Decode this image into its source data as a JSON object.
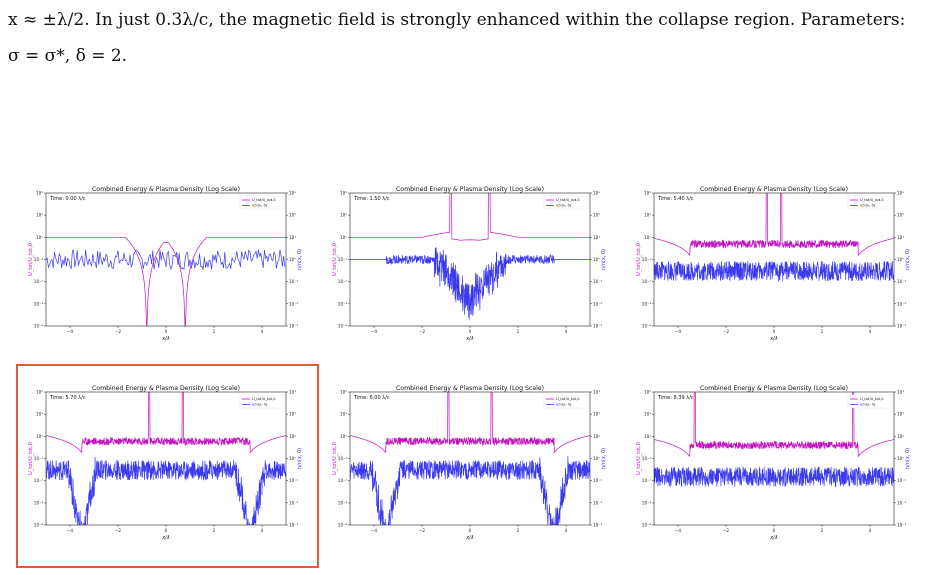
{
  "caption": {
    "line1": "x ≈ ±λ/2. In just 0.3λ/c, the magnetic field is strongly enhanced within the collapse region. Parameters:",
    "line2": "σ = σ*, δ = 2."
  },
  "colors": {
    "energy": "#c012c0",
    "density": "#3a3af0",
    "highlight": "#e8573c"
  },
  "highlighted_panel_index": 3,
  "chart_data": [
    {
      "type": "line",
      "title": "Combined Energy & Plasma Density (Log Scale)",
      "time_label": "Time: 0.00 λ/c",
      "xlabel": "x/λ",
      "ylabel_left": "U_tot/U_tot,0",
      "ylabel_right": "n/n(x, 0)",
      "xlim": [
        -5,
        5
      ],
      "ylim_left": [
        0.0001,
        100
      ],
      "ylim_right": [
        0.001,
        1000
      ],
      "log_y": true,
      "legend": {
        "entries": [
          "U_tot/U_tot,0",
          "n/n(x, 0)"
        ],
        "placement": "top-right"
      },
      "series": [
        {
          "name": "U_tot/U_tot,0",
          "shape": "dips",
          "base": 1,
          "dips_at": [
            -0.8,
            0.8
          ]
        },
        {
          "name": "n/n(x, 0)",
          "shape": "flat",
          "base": 1
        }
      ]
    },
    {
      "type": "line",
      "title": "Combined Energy & Plasma Density (Log Scale)",
      "time_label": "Time: 1.50 λ/c",
      "xlabel": "x/λ",
      "ylabel_left": "U_tot/U_tot,0",
      "ylabel_right": "n/n(x, 0)",
      "xlim": [
        -5,
        5
      ],
      "ylim_left": [
        0.0001,
        100
      ],
      "ylim_right": [
        0.001,
        1000
      ],
      "log_y": true,
      "legend": {
        "entries": [
          "U_tot/U_tot,0",
          "n/n(x, 0)"
        ],
        "placement": "top-right"
      },
      "series": [
        {
          "name": "U_tot/U_tot,0",
          "shape": "spikes",
          "base": 1,
          "spikes_at": [
            -0.8,
            0.8
          ]
        },
        {
          "name": "n/n(x, 0)",
          "shape": "noisy-dip",
          "base": 1
        }
      ]
    },
    {
      "type": "line",
      "title": "Combined Energy & Plasma Density (Log Scale)",
      "time_label": "Time: 5.40 λ/c",
      "xlabel": "x/λ",
      "ylabel_left": "U_tot/U_tot,0",
      "ylabel_right": "n/n(x, 0)",
      "xlim": [
        -5,
        5
      ],
      "ylim_left": [
        0.0001,
        100
      ],
      "ylim_right": [
        0.001,
        1000
      ],
      "log_y": true,
      "legend": {
        "entries": [
          "U_tot/U_tot,0",
          "n/n(x, 0)"
        ],
        "placement": "top-right"
      },
      "series": [
        {
          "name": "U_tot/U_tot,0",
          "shape": "noisy",
          "base": 0.5,
          "spikes_at": [
            -0.3,
            0.3
          ]
        },
        {
          "name": "n/n(x, 0)",
          "shape": "noisy",
          "base": 0.3
        }
      ]
    },
    {
      "type": "line",
      "title": "Combined Energy & Plasma Density (Log Scale)",
      "time_label": "Time: 5.70 λ/c",
      "xlabel": "x/λ",
      "ylabel_left": "U_tot/U_tot,0",
      "ylabel_right": "n/n(x, 0)",
      "xlim": [
        -5,
        5
      ],
      "ylim_left": [
        0.0001,
        100
      ],
      "ylim_right": [
        0.001,
        1000
      ],
      "log_y": true,
      "legend": {
        "entries": [
          "U_tot/U_tot,0",
          "n/n(x, 0)"
        ],
        "placement": "top-right"
      },
      "series": [
        {
          "name": "U_tot/U_tot,0",
          "shape": "noisy",
          "base": 0.6,
          "spikes_at": [
            -0.7,
            0.7
          ]
        },
        {
          "name": "n/n(x, 0)",
          "shape": "noisy-deepdips",
          "base": 0.3,
          "dips_at": [
            -3.5,
            3.5
          ]
        }
      ]
    },
    {
      "type": "line",
      "title": "Combined Energy & Plasma Density (Log Scale)",
      "time_label": "Time: 6.00 λ/c",
      "xlabel": "x/λ",
      "ylabel_left": "U_tot/U_tot,0",
      "ylabel_right": "n/n(x, 0)",
      "xlim": [
        -5,
        5
      ],
      "ylim_left": [
        0.0001,
        100
      ],
      "ylim_right": [
        0.001,
        1000
      ],
      "log_y": true,
      "legend": {
        "entries": [
          "U_tot/U_tot,0",
          "n/n(x, 0)"
        ],
        "placement": "top-right"
      },
      "series": [
        {
          "name": "U_tot/U_tot,0",
          "shape": "noisy",
          "base": 0.6,
          "spikes_at": [
            -0.9,
            0.9
          ]
        },
        {
          "name": "n/n(x, 0)",
          "shape": "noisy-deepdips",
          "base": 0.3,
          "dips_at": [
            -3.5,
            3.5
          ]
        }
      ]
    },
    {
      "type": "line",
      "title": "Combined Energy & Plasma Density (Log Scale)",
      "time_label": "Time: 8.39 λ/c",
      "xlabel": "x/λ",
      "ylabel_left": "U_tot/U_tot,0",
      "ylabel_right": "n/n(x, 0)",
      "xlim": [
        -5,
        5
      ],
      "ylim_left": [
        0.0001,
        100
      ],
      "ylim_right": [
        0.001,
        1000
      ],
      "log_y": true,
      "legend": {
        "entries": [
          "U_tot/U_tot,0",
          "n/n(x, 0)"
        ],
        "placement": "top-right"
      },
      "series": [
        {
          "name": "U_tot/U_tot,0",
          "shape": "noisy",
          "base": 0.4,
          "spikes_at": [
            -3.3,
            3.3
          ]
        },
        {
          "name": "n/n(x, 0)",
          "shape": "noisy",
          "base": 0.15
        }
      ]
    }
  ]
}
